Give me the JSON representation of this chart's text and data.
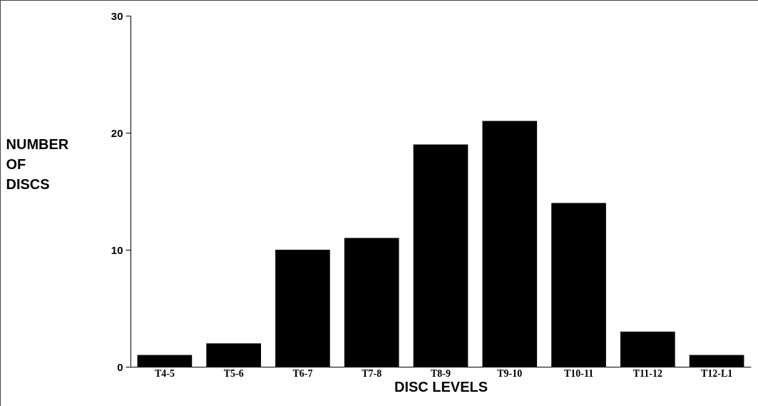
{
  "chart_data": {
    "type": "bar",
    "xlabel": "DISC LEVELS",
    "ylabel": "NUMBER OF DISCS",
    "categories": [
      "T4-5",
      "T5-6",
      "T6-7",
      "T7-8",
      "T8-9",
      "T9-10",
      "T10-11",
      "T11-12",
      "T12-L1"
    ],
    "values": [
      1,
      2,
      10,
      11,
      19,
      21,
      14,
      3,
      1
    ],
    "color": "#000000",
    "ylim": [
      0,
      30
    ],
    "yticks": [
      0,
      10,
      20,
      30
    ],
    "grid": false
  }
}
